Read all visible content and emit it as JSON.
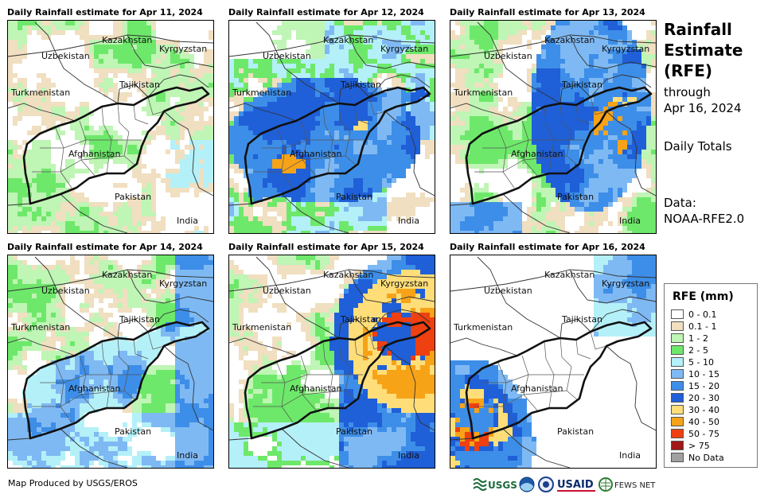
{
  "panels": [
    {
      "title": "Daily Rainfall estimate for Apr 11, 2024",
      "scene": "light"
    },
    {
      "title": "Daily Rainfall estimate for Apr 12, 2024",
      "scene": "wet"
    },
    {
      "title": "Daily Rainfall estimate for Apr 13, 2024",
      "scene": "east"
    },
    {
      "title": "Daily Rainfall estimate for Apr 14, 2024",
      "scene": "moderate"
    },
    {
      "title": "Daily Rainfall estimate for Apr 15, 2024",
      "scene": "heavy-ne"
    },
    {
      "title": "Daily Rainfall estimate for Apr 16, 2024",
      "scene": "sw"
    }
  ],
  "country_labels": {
    "kazakhstan": "Kazakhstan",
    "kyrgyzstan": "Kyrgyzstan",
    "uzbekistan": "Uzbekistan",
    "tajikistan": "Tajikistan",
    "turkmenistan": "Turkmenistan",
    "afghanistan": "Afghanistan",
    "pakistan": "Pakistan",
    "india": "India"
  },
  "sidebar": {
    "title_line1": "Rainfall",
    "title_line2": "Estimate",
    "title_line3": "(RFE)",
    "through_label": "through",
    "through_date": "Apr 16, 2024",
    "totals_label": "Daily Totals",
    "data_label": "Data:",
    "data_source": "NOAA-RFE2.0"
  },
  "legend": {
    "title": "RFE (mm)",
    "items": [
      {
        "label": "0 - 0.1",
        "color": "#ffffff"
      },
      {
        "label": "0.1 - 1",
        "color": "#f0dfc0"
      },
      {
        "label": "1 - 2",
        "color": "#bff5b5"
      },
      {
        "label": "2 - 5",
        "color": "#6ee86a"
      },
      {
        "label": "5 - 10",
        "color": "#b4f0f8"
      },
      {
        "label": "10 - 15",
        "color": "#7fb9f3"
      },
      {
        "label": "15 - 20",
        "color": "#3d8ee8"
      },
      {
        "label": "20 - 30",
        "color": "#1f5fd8"
      },
      {
        "label": "30 - 40",
        "color": "#ffde7a"
      },
      {
        "label": "40 - 50",
        "color": "#f7a318"
      },
      {
        "label": "50 - 75",
        "color": "#ee4010"
      },
      {
        "label": "> 75",
        "color": "#a01818"
      },
      {
        "label": "No Data",
        "color": "#a0a0a0"
      }
    ]
  },
  "footer": {
    "credit": "Map Produced by USGS/EROS",
    "logo_usgs": "USGS",
    "logo_usaid": "USAID",
    "logo_fews": "FEWS NET"
  }
}
